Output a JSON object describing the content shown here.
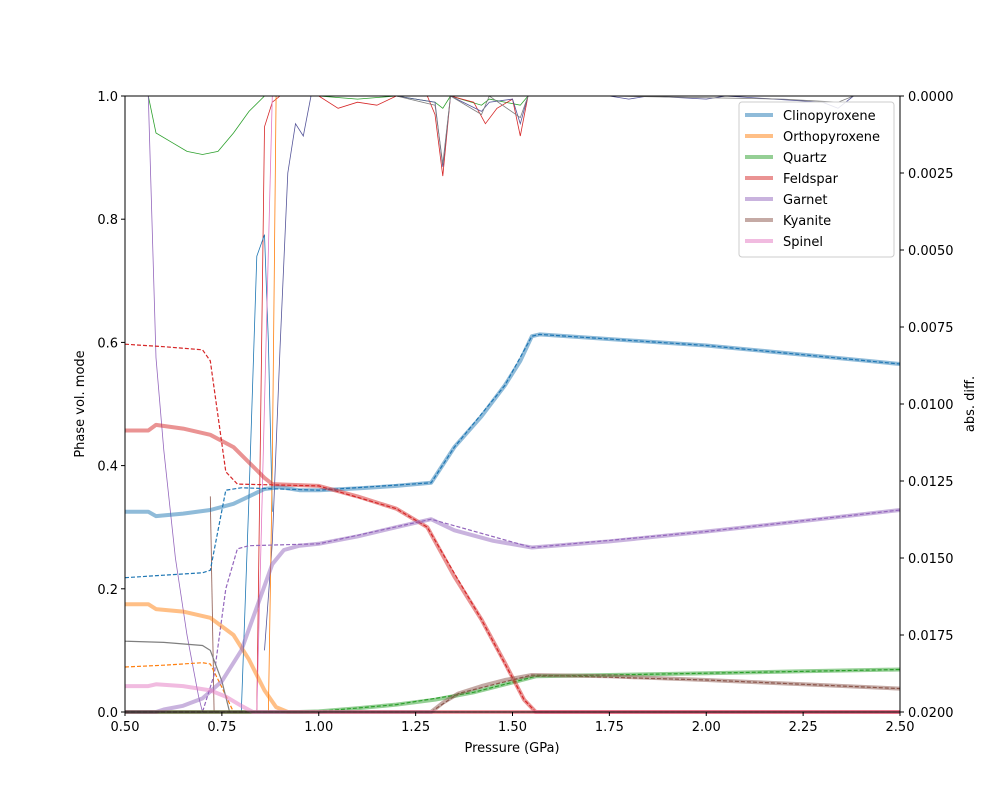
{
  "chart_data": {
    "type": "line",
    "xlabel": "Pressure (GPa)",
    "ylabel": "Phase vol. mode",
    "y2label": "abs. diff.",
    "xlim": [
      0.5,
      2.5
    ],
    "ylim": [
      0,
      1
    ],
    "y2lim": [
      0.02,
      0.0
    ],
    "xticks": [
      "0.50",
      "0.75",
      "1.00",
      "1.25",
      "1.50",
      "1.75",
      "2.00",
      "2.25",
      "2.50"
    ],
    "yticks": [
      "0.0",
      "0.2",
      "0.4",
      "0.6",
      "0.8",
      "1.0"
    ],
    "y2ticks": [
      "0.0000",
      "0.0025",
      "0.0050",
      "0.0075",
      "0.0100",
      "0.0125",
      "0.0150",
      "0.0175",
      "0.0200"
    ],
    "grid": false,
    "legend_position": "top-right",
    "series": [
      {
        "name": "Clinopyroxene",
        "color": "#1f77b4",
        "values": [
          [
            0.5,
            0.325
          ],
          [
            0.56,
            0.325
          ],
          [
            0.58,
            0.318
          ],
          [
            0.65,
            0.322
          ],
          [
            0.72,
            0.328
          ],
          [
            0.78,
            0.338
          ],
          [
            0.82,
            0.35
          ],
          [
            0.86,
            0.362
          ],
          [
            0.9,
            0.365
          ],
          [
            0.95,
            0.36
          ],
          [
            1.0,
            0.36
          ],
          [
            1.1,
            0.363
          ],
          [
            1.2,
            0.367
          ],
          [
            1.29,
            0.372
          ],
          [
            1.35,
            0.43
          ],
          [
            1.42,
            0.48
          ],
          [
            1.48,
            0.53
          ],
          [
            1.52,
            0.57
          ],
          [
            1.55,
            0.61
          ],
          [
            1.57,
            0.613
          ],
          [
            2.0,
            0.595
          ],
          [
            2.5,
            0.565
          ]
        ]
      },
      {
        "name": "Orthopyroxene",
        "color": "#ff7f0e",
        "values": [
          [
            0.5,
            0.175
          ],
          [
            0.56,
            0.175
          ],
          [
            0.58,
            0.167
          ],
          [
            0.65,
            0.163
          ],
          [
            0.72,
            0.153
          ],
          [
            0.78,
            0.125
          ],
          [
            0.82,
            0.085
          ],
          [
            0.86,
            0.035
          ],
          [
            0.89,
            0.008
          ],
          [
            0.92,
            0.0
          ],
          [
            2.5,
            0.0
          ]
        ]
      },
      {
        "name": "Quartz",
        "color": "#2ca02c",
        "values": [
          [
            0.5,
            0.0
          ],
          [
            0.95,
            0.0
          ],
          [
            1.0,
            0.001
          ],
          [
            1.1,
            0.006
          ],
          [
            1.2,
            0.012
          ],
          [
            1.3,
            0.02
          ],
          [
            1.4,
            0.032
          ],
          [
            1.5,
            0.048
          ],
          [
            1.56,
            0.058
          ],
          [
            1.75,
            0.06
          ],
          [
            2.0,
            0.063
          ],
          [
            2.25,
            0.066
          ],
          [
            2.5,
            0.069
          ]
        ]
      },
      {
        "name": "Feldspar",
        "color": "#d62728",
        "values": [
          [
            0.5,
            0.457
          ],
          [
            0.56,
            0.457
          ],
          [
            0.58,
            0.466
          ],
          [
            0.65,
            0.46
          ],
          [
            0.72,
            0.45
          ],
          [
            0.78,
            0.43
          ],
          [
            0.82,
            0.405
          ],
          [
            0.86,
            0.38
          ],
          [
            0.88,
            0.37
          ],
          [
            1.0,
            0.367
          ],
          [
            1.1,
            0.35
          ],
          [
            1.2,
            0.33
          ],
          [
            1.28,
            0.3
          ],
          [
            1.35,
            0.22
          ],
          [
            1.42,
            0.15
          ],
          [
            1.48,
            0.08
          ],
          [
            1.53,
            0.02
          ],
          [
            1.56,
            0.0
          ],
          [
            2.5,
            0.0
          ]
        ]
      },
      {
        "name": "Garnet",
        "color": "#9467bd",
        "values": [
          [
            0.5,
            0.0
          ],
          [
            0.58,
            0.0
          ],
          [
            0.6,
            0.004
          ],
          [
            0.65,
            0.01
          ],
          [
            0.7,
            0.022
          ],
          [
            0.75,
            0.05
          ],
          [
            0.8,
            0.1
          ],
          [
            0.84,
            0.17
          ],
          [
            0.88,
            0.24
          ],
          [
            0.91,
            0.263
          ],
          [
            0.95,
            0.27
          ],
          [
            1.0,
            0.273
          ],
          [
            1.1,
            0.285
          ],
          [
            1.2,
            0.3
          ],
          [
            1.29,
            0.313
          ],
          [
            1.35,
            0.295
          ],
          [
            1.45,
            0.278
          ],
          [
            1.55,
            0.267
          ],
          [
            1.75,
            0.277
          ],
          [
            2.0,
            0.293
          ],
          [
            2.25,
            0.31
          ],
          [
            2.5,
            0.328
          ]
        ]
      },
      {
        "name": "Kyanite",
        "color": "#8c564b",
        "values": [
          [
            0.5,
            0.0
          ],
          [
            1.29,
            0.0
          ],
          [
            1.32,
            0.015
          ],
          [
            1.36,
            0.03
          ],
          [
            1.42,
            0.042
          ],
          [
            1.48,
            0.052
          ],
          [
            1.55,
            0.06
          ],
          [
            1.75,
            0.058
          ],
          [
            2.0,
            0.052
          ],
          [
            2.25,
            0.045
          ],
          [
            2.5,
            0.038
          ]
        ]
      },
      {
        "name": "Spinel",
        "color": "#e377c2",
        "values": [
          [
            0.5,
            0.042
          ],
          [
            0.56,
            0.042
          ],
          [
            0.58,
            0.045
          ],
          [
            0.65,
            0.042
          ],
          [
            0.72,
            0.035
          ],
          [
            0.76,
            0.025
          ],
          [
            0.8,
            0.01
          ],
          [
            0.83,
            0.0
          ],
          [
            2.5,
            0.0
          ]
        ]
      }
    ],
    "reference_series": [
      {
        "name": "Clinopyroxene",
        "color": "#1f77b4",
        "values": [
          [
            0.5,
            0.218
          ],
          [
            0.6,
            0.222
          ],
          [
            0.7,
            0.226
          ],
          [
            0.72,
            0.23
          ],
          [
            0.76,
            0.36
          ],
          [
            0.8,
            0.364
          ],
          [
            1.0,
            0.36
          ],
          [
            1.29,
            0.372
          ],
          [
            1.35,
            0.43
          ],
          [
            1.48,
            0.53
          ],
          [
            1.55,
            0.61
          ],
          [
            1.57,
            0.613
          ],
          [
            2.0,
            0.595
          ],
          [
            2.5,
            0.565
          ]
        ]
      },
      {
        "name": "Orthopyroxene",
        "color": "#ff7f0e",
        "values": [
          [
            0.5,
            0.073
          ],
          [
            0.6,
            0.076
          ],
          [
            0.7,
            0.08
          ],
          [
            0.72,
            0.078
          ],
          [
            0.75,
            0.04
          ],
          [
            0.78,
            0.0
          ],
          [
            2.5,
            0.0
          ]
        ]
      },
      {
        "name": "Quartz",
        "color": "#2ca02c",
        "values": [
          [
            0.5,
            0.0
          ],
          [
            0.95,
            0.0
          ],
          [
            1.0,
            0.001
          ],
          [
            1.2,
            0.012
          ],
          [
            1.4,
            0.032
          ],
          [
            1.56,
            0.058
          ],
          [
            2.0,
            0.063
          ],
          [
            2.5,
            0.069
          ]
        ]
      },
      {
        "name": "Feldspar",
        "color": "#d62728",
        "values": [
          [
            0.5,
            0.597
          ],
          [
            0.6,
            0.593
          ],
          [
            0.7,
            0.588
          ],
          [
            0.72,
            0.57
          ],
          [
            0.76,
            0.39
          ],
          [
            0.79,
            0.37
          ],
          [
            1.0,
            0.367
          ],
          [
            1.2,
            0.33
          ],
          [
            1.28,
            0.3
          ],
          [
            1.42,
            0.15
          ],
          [
            1.53,
            0.02
          ],
          [
            1.56,
            0.0
          ],
          [
            2.5,
            0.0
          ]
        ]
      },
      {
        "name": "Garnet",
        "color": "#9467bd",
        "values": [
          [
            0.5,
            0.0
          ],
          [
            0.7,
            0.0
          ],
          [
            0.73,
            0.06
          ],
          [
            0.76,
            0.2
          ],
          [
            0.79,
            0.265
          ],
          [
            0.82,
            0.27
          ],
          [
            1.0,
            0.273
          ],
          [
            1.29,
            0.313
          ],
          [
            1.55,
            0.267
          ],
          [
            2.0,
            0.293
          ],
          [
            2.5,
            0.328
          ]
        ]
      },
      {
        "name": "Kyanite",
        "color": "#8c564b",
        "values": [
          [
            0.5,
            0.0
          ],
          [
            1.29,
            0.0
          ],
          [
            1.36,
            0.03
          ],
          [
            1.55,
            0.06
          ],
          [
            2.0,
            0.052
          ],
          [
            2.5,
            0.038
          ]
        ]
      },
      {
        "name": "Spinel",
        "color": "#e377c2",
        "values": [
          [
            0.5,
            0.0
          ],
          [
            2.5,
            0.0
          ]
        ]
      },
      {
        "name": "",
        "color": "#7f7f7f",
        "values": [
          [
            0.5,
            0.115
          ],
          [
            0.6,
            0.113
          ],
          [
            0.7,
            0.108
          ],
          [
            0.72,
            0.1
          ],
          [
            0.75,
            0.05
          ],
          [
            0.77,
            0.0
          ],
          [
            2.5,
            0.0
          ]
        ]
      }
    ],
    "abs_diff_series": [
      {
        "color": "#2ca02c",
        "values": [
          [
            0.5,
            0.0
          ],
          [
            0.56,
            0.0
          ],
          [
            0.58,
            0.0012
          ],
          [
            0.62,
            0.0015
          ],
          [
            0.66,
            0.0018
          ],
          [
            0.7,
            0.0019
          ],
          [
            0.74,
            0.0018
          ],
          [
            0.78,
            0.0012
          ],
          [
            0.82,
            0.0005
          ],
          [
            0.86,
            0.0
          ],
          [
            1.0,
            0.0
          ],
          [
            1.1,
            0.0001
          ],
          [
            1.2,
            0.0
          ],
          [
            1.3,
            0.0002
          ],
          [
            1.32,
            0.0004
          ],
          [
            1.34,
            0.0
          ],
          [
            1.42,
            0.0003
          ],
          [
            1.44,
            0.0001
          ],
          [
            1.52,
            0.0003
          ],
          [
            1.54,
            0.0
          ],
          [
            2.5,
            0.0
          ]
        ]
      },
      {
        "color": "#9467bd",
        "values": [
          [
            0.56,
            0.0
          ],
          [
            0.58,
            0.0085
          ],
          [
            0.6,
            0.0115
          ],
          [
            0.63,
            0.015
          ],
          [
            0.66,
            0.0175
          ],
          [
            0.69,
            0.0195
          ],
          [
            0.7,
            0.02
          ]
        ]
      },
      {
        "color": "#d62728",
        "values": [
          [
            0.84,
            0.02
          ],
          [
            0.86,
            0.001
          ],
          [
            0.88,
            0.0002
          ],
          [
            0.9,
            0.0
          ],
          [
            1.0,
            0.0
          ],
          [
            1.05,
            0.0004
          ],
          [
            1.1,
            0.0002
          ],
          [
            1.15,
            0.0003
          ],
          [
            1.2,
            0.0
          ],
          [
            1.28,
            0.0
          ],
          [
            1.3,
            0.0006
          ],
          [
            1.32,
            0.0026
          ],
          [
            1.34,
            0.0
          ],
          [
            1.4,
            0.0002
          ],
          [
            1.43,
            0.0009
          ],
          [
            1.46,
            0.0004
          ],
          [
            1.5,
            0.0001
          ],
          [
            1.52,
            0.0013
          ],
          [
            1.54,
            0.0
          ],
          [
            2.5,
            0.0
          ]
        ]
      },
      {
        "color": "#1f77b4",
        "values": [
          [
            0.8,
            0.02
          ],
          [
            0.82,
            0.013
          ],
          [
            0.84,
            0.0052
          ],
          [
            0.86,
            0.0045
          ],
          [
            0.87,
            0.008
          ],
          [
            0.88,
            0.0135
          ]
        ]
      },
      {
        "color": "#555599",
        "values": [
          [
            0.86,
            0.018
          ],
          [
            0.88,
            0.0145
          ],
          [
            0.9,
            0.0082
          ],
          [
            0.92,
            0.0025
          ],
          [
            0.94,
            0.0009
          ],
          [
            0.96,
            0.0013
          ],
          [
            0.98,
            0.0
          ],
          [
            1.2,
            0.0
          ],
          [
            1.3,
            0.0002
          ],
          [
            1.32,
            0.0023
          ],
          [
            1.34,
            0.0
          ],
          [
            1.42,
            0.0005
          ],
          [
            1.44,
            0.0002
          ],
          [
            1.5,
            0.0001
          ],
          [
            1.52,
            0.0009
          ],
          [
            1.54,
            0.0
          ],
          [
            1.75,
            0.0
          ],
          [
            1.8,
            0.0001
          ],
          [
            1.85,
            0.0
          ],
          [
            2.0,
            0.0001
          ],
          [
            2.05,
            0.0
          ],
          [
            2.3,
            0.0002
          ],
          [
            2.34,
            0.0004
          ],
          [
            2.38,
            0.0
          ],
          [
            2.5,
            0.0
          ]
        ]
      },
      {
        "color": "#ff7f0e",
        "values": [
          [
            0.87,
            0.02
          ],
          [
            0.88,
            0.012
          ],
          [
            0.89,
            0.0
          ],
          [
            2.5,
            0.0
          ]
        ]
      },
      {
        "color": "#e377c2",
        "values": [
          [
            0.84,
            0.02
          ],
          [
            0.86,
            0.01
          ],
          [
            0.88,
            0.0
          ],
          [
            2.5,
            0.0
          ]
        ]
      },
      {
        "color": "#8c564b",
        "values": [
          [
            0.72,
            0.013
          ],
          [
            0.73,
            0.02
          ]
        ]
      },
      {
        "color": "#7f7f7f",
        "values": [
          [
            1.2,
            0.0
          ],
          [
            1.3,
            0.0003
          ],
          [
            1.32,
            0.0022
          ],
          [
            1.34,
            0.0
          ],
          [
            1.42,
            0.0006
          ],
          [
            1.44,
            0.0
          ],
          [
            1.52,
            0.0007
          ],
          [
            1.54,
            0.0
          ],
          [
            1.75,
            0.0
          ],
          [
            2.2,
            0.0001
          ],
          [
            2.34,
            0.0002
          ],
          [
            2.38,
            0.0
          ],
          [
            2.5,
            0.0
          ]
        ]
      }
    ]
  }
}
